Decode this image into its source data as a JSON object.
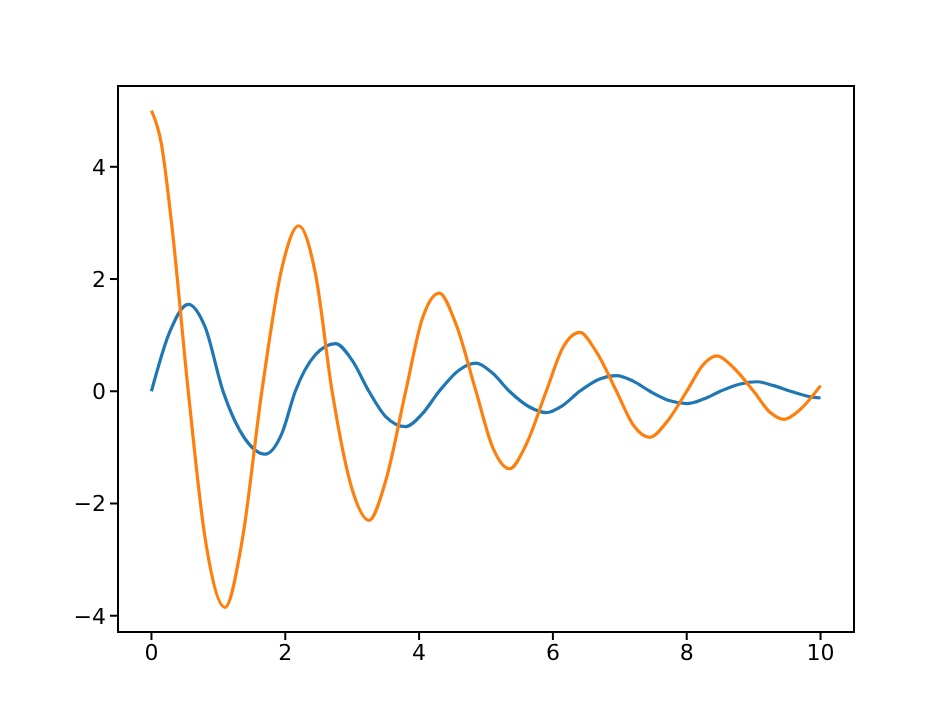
{
  "chart_data": {
    "type": "line",
    "xlim": [
      -0.5,
      10.5
    ],
    "ylim": [
      -4.29,
      5.44
    ],
    "xticks": [
      0,
      2,
      4,
      6,
      8,
      10
    ],
    "yticks": [
      -4,
      -2,
      0,
      2,
      4
    ],
    "grid": false,
    "marker": "none",
    "line_style": "solid",
    "series": [
      {
        "color": "#1f77b4",
        "x": [
          0,
          0.27,
          0.55,
          0.8,
          1.07,
          1.4,
          1.7,
          1.95,
          2.15,
          2.45,
          2.75,
          3.0,
          3.25,
          3.5,
          3.8,
          4.05,
          4.3,
          4.6,
          4.85,
          5.1,
          5.35,
          5.65,
          5.9,
          6.15,
          6.4,
          6.7,
          6.95,
          7.2,
          7.45,
          7.75,
          8.0,
          8.25,
          8.5,
          8.8,
          9.05,
          9.3,
          9.55,
          9.85,
          10
        ],
        "values": [
          0,
          1.05,
          1.55,
          1.15,
          0,
          -0.85,
          -1.12,
          -0.75,
          0,
          0.65,
          0.85,
          0.55,
          0,
          -0.45,
          -0.63,
          -0.4,
          0,
          0.38,
          0.5,
          0.32,
          0,
          -0.28,
          -0.38,
          -0.25,
          0,
          0.22,
          0.28,
          0.18,
          0,
          -0.17,
          -0.22,
          -0.14,
          0,
          0.13,
          0.17,
          0.1,
          0,
          -0.1,
          -0.12
        ]
      },
      {
        "color": "#ff7f0e",
        "x": [
          0,
          0.15,
          0.3,
          0.55,
          0.8,
          1.1,
          1.35,
          1.65,
          1.95,
          2.2,
          2.45,
          2.7,
          3.0,
          3.25,
          3.5,
          3.8,
          4.05,
          4.3,
          4.55,
          4.85,
          5.1,
          5.35,
          5.6,
          5.9,
          6.15,
          6.4,
          6.65,
          6.95,
          7.2,
          7.45,
          7.7,
          8.0,
          8.25,
          8.45,
          8.7,
          9.0,
          9.25,
          9.45,
          9.7,
          10
        ],
        "values": [
          5,
          4.4,
          3.0,
          0,
          -2.6,
          -3.85,
          -2.7,
          0,
          2.2,
          2.95,
          2.1,
          0,
          -1.75,
          -2.3,
          -1.6,
          0,
          1.3,
          1.75,
          1.2,
          0,
          -1.0,
          -1.38,
          -0.95,
          0,
          0.78,
          1.05,
          0.7,
          0,
          -0.6,
          -0.82,
          -0.55,
          0,
          0.48,
          0.63,
          0.42,
          0,
          -0.38,
          -0.5,
          -0.32,
          0.1
        ]
      }
    ]
  }
}
